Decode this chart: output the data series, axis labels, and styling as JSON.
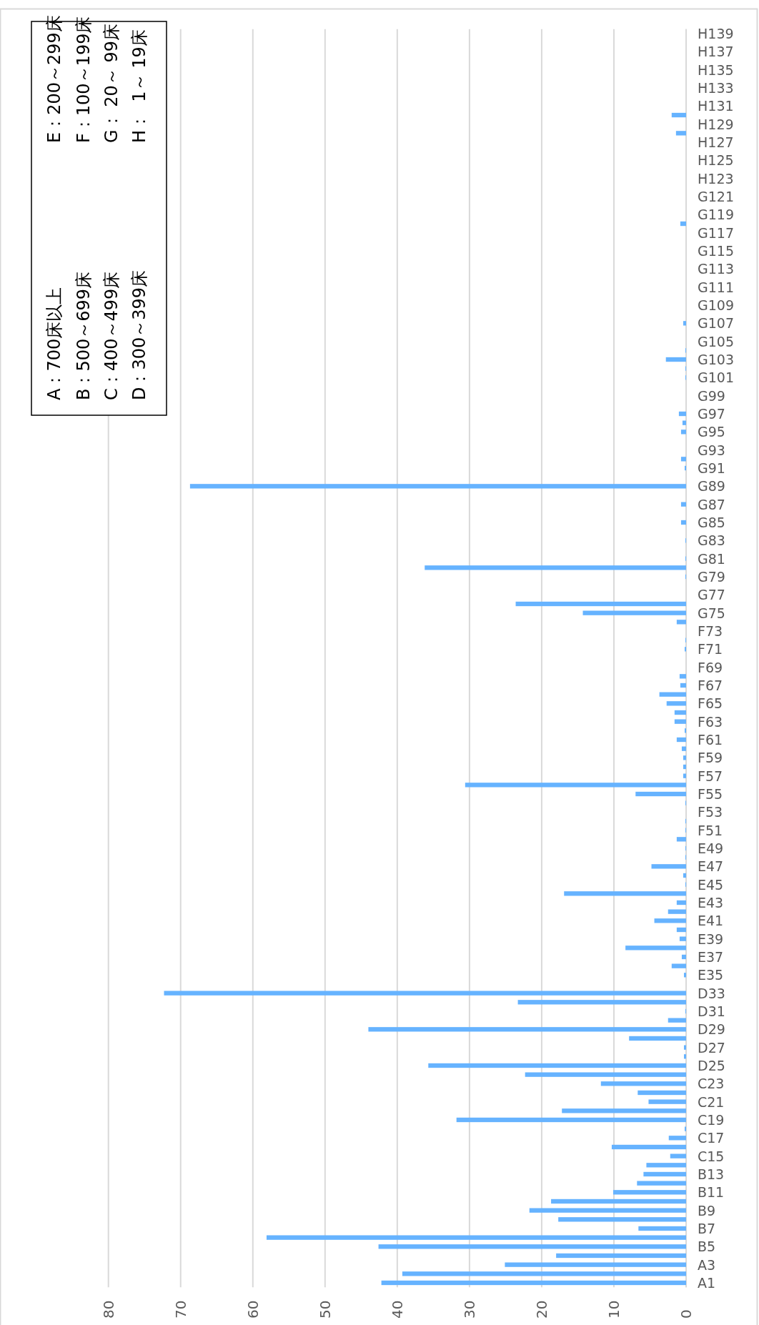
{
  "chart_data": {
    "type": "bar",
    "orientation": "horizontal",
    "categories": [
      "H139",
      null,
      "H137",
      null,
      "H135",
      null,
      "H133",
      null,
      "H131",
      null,
      "H129",
      null,
      "H127",
      null,
      "H125",
      null,
      "H123",
      null,
      "G121",
      null,
      "G119",
      null,
      "G117",
      null,
      "G115",
      null,
      "G113",
      null,
      "G111",
      null,
      "G109",
      null,
      "G107",
      null,
      "G105",
      null,
      "G103",
      null,
      "G101",
      null,
      "G99",
      null,
      "G97",
      null,
      "G95",
      null,
      "G93",
      null,
      "G91",
      null,
      "G89",
      null,
      "G87",
      null,
      "G85",
      null,
      "G83",
      null,
      "G81",
      null,
      "G79",
      null,
      "G77",
      null,
      "G75",
      null,
      "F73",
      null,
      "F71",
      null,
      "F69",
      null,
      "F67",
      null,
      "F65",
      null,
      "F63",
      null,
      "F61",
      null,
      "F59",
      null,
      "F57",
      null,
      "F55",
      null,
      "F53",
      null,
      "F51",
      null,
      "E49",
      null,
      "E47",
      null,
      "E45",
      null,
      "E43",
      null,
      "E41",
      null,
      "E39",
      null,
      "E37",
      null,
      "E35",
      null,
      "D33",
      null,
      "D31",
      null,
      "D29",
      null,
      "D27",
      null,
      "D25",
      null,
      "C23",
      null,
      "C21",
      null,
      "C19",
      null,
      "C17",
      null,
      "C15",
      null,
      "B13",
      null,
      "B11",
      null,
      "B9",
      null,
      "B7",
      null,
      "B5",
      null,
      "A3",
      null,
      "A1"
    ],
    "values": [
      0,
      0,
      0,
      0,
      0,
      0,
      0,
      0,
      0,
      2.0,
      0,
      1.4,
      0,
      0,
      0,
      0,
      0,
      0,
      0,
      0,
      0,
      0.8,
      0,
      0,
      0,
      0,
      0,
      0,
      0,
      0,
      0,
      0,
      0.4,
      0,
      0,
      0.1,
      2.8,
      0.1,
      0.1,
      0,
      0,
      0,
      1.0,
      0.5,
      0.7,
      0,
      0,
      0.7,
      0.2,
      0,
      68.7,
      0,
      0.7,
      0,
      0.7,
      0,
      0.1,
      0,
      0.1,
      36.2,
      0.1,
      0,
      0,
      23.6,
      14.3,
      1.3,
      0,
      0.1,
      0.2,
      0,
      0,
      0.9,
      0.8,
      3.7,
      2.7,
      1.6,
      1.6,
      0.2,
      1.3,
      0.6,
      0.4,
      0.4,
      0.4,
      30.6,
      7.0,
      0.1,
      0,
      0.1,
      0.1,
      1.3,
      0.1,
      0.1,
      4.8,
      0.4,
      0.1,
      16.9,
      1.3,
      2.5,
      4.4,
      1.3,
      0.9,
      8.4,
      0.6,
      2.0,
      0.3,
      0,
      72.3,
      23.3,
      0.1,
      2.5,
      44.0,
      7.9,
      0.3,
      0.3,
      35.7,
      22.3,
      11.8,
      6.7,
      5.2,
      17.2,
      31.8,
      0.2,
      2.4,
      10.3,
      2.2,
      5.5,
      5.9,
      6.8,
      10.1,
      18.7,
      21.7,
      17.7,
      6.6,
      58.1,
      42.6,
      18.0,
      25.1,
      39.3,
      42.2
    ],
    "color": "#66b3ff",
    "xlim": [
      80,
      0
    ],
    "xticks": [
      0,
      10,
      20,
      30,
      40,
      50,
      60,
      70,
      80
    ],
    "grid": "x",
    "annotations": [
      "A：700床以上",
      "B：500～699床",
      "C：400～499床",
      "D：300～399床",
      "E：200～299床",
      "F：100～199床",
      "G： 20～ 99床",
      "H：  1～ 19床"
    ]
  }
}
